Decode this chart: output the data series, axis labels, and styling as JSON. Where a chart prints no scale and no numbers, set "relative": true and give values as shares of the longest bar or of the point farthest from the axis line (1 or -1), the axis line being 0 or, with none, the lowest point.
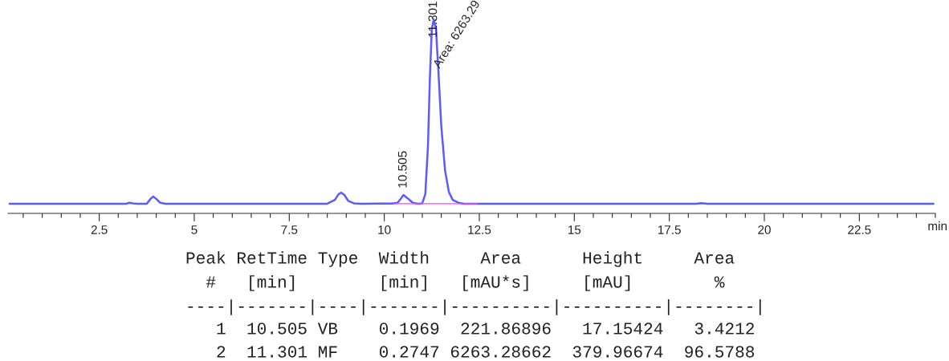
{
  "chart_data": {
    "type": "line",
    "relative": true,
    "xlabel": "min",
    "xlim": [
      0.1,
      24.5
    ],
    "xticks": [
      2.5,
      5,
      7.5,
      10,
      12.5,
      15,
      17.5,
      20,
      22.5
    ],
    "grid": false,
    "legend": false,
    "marker": "none",
    "line_style": "solid",
    "series": [
      {
        "color": "#5b5bff",
        "x": [
          0.14,
          3.2,
          3.3,
          3.38,
          3.5,
          3.75,
          3.85,
          3.92,
          4.0,
          4.1,
          4.25,
          8.5,
          8.7,
          8.8,
          8.87,
          8.95,
          9.05,
          9.2,
          9.4,
          9.8,
          10.2,
          10.35,
          10.45,
          10.505,
          10.6,
          10.75,
          10.9,
          11.0,
          11.08,
          11.15,
          11.2,
          11.25,
          11.301,
          11.36,
          11.42,
          11.5,
          11.6,
          11.7,
          11.8,
          11.95,
          12.1,
          18.2,
          18.35,
          18.5,
          24.45
        ],
        "values": [
          0.05,
          0.05,
          0.055,
          0.052,
          0.05,
          0.05,
          0.075,
          0.087,
          0.075,
          0.055,
          0.05,
          0.05,
          0.07,
          0.1,
          0.107,
          0.095,
          0.065,
          0.052,
          0.05,
          0.051,
          0.051,
          0.055,
          0.08,
          0.095,
          0.08,
          0.055,
          0.05,
          0.052,
          0.1,
          0.35,
          0.7,
          0.95,
          1.0,
          0.95,
          0.75,
          0.45,
          0.22,
          0.11,
          0.07,
          0.055,
          0.05,
          0.05,
          0.053,
          0.05,
          0.05
        ]
      },
      {
        "color": "#ff40ff",
        "x": [
          10.25,
          12.45
        ],
        "values": [
          0.05,
          0.05
        ]
      }
    ],
    "annotations": [
      {
        "text": "10.505",
        "x": 10.505,
        "y": 0.095
      },
      {
        "text": "11.301",
        "x": 11.301,
        "y": 1.0
      },
      {
        "text": "Area: 6263.29",
        "x": 11.42,
        "y": 0.75
      },
      "Peak RetTime Type  Width     Area      Height     Area",
      "  #   [min]        [min]   [mAU*s]     [mAU]        %",
      "----|-------|----|-------|----------|----------|--------|",
      "   1  10.505 VB    0.1969  221.86896   17.15424   3.4212",
      "   2  11.301 MF    0.2747 6263.28662  379.96674  96.5788"
    ]
  }
}
